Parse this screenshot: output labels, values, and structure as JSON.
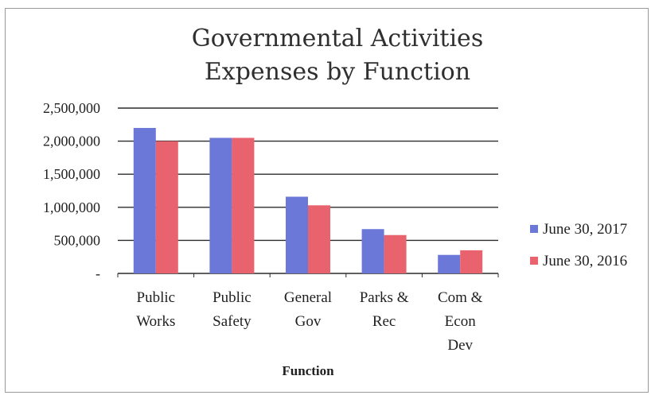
{
  "chart_data": {
    "type": "bar",
    "title_lines": [
      "Governmental Activities",
      "Expenses by Function"
    ],
    "xlabel": "Function",
    "ylabel": "",
    "ylim": [
      0,
      2500000
    ],
    "yticks": [
      0,
      500000,
      1000000,
      1500000,
      2000000,
      2500000
    ],
    "ytick_labels": [
      "-",
      "500,000",
      "1,000,000",
      "1,500,000",
      "2,000,000",
      "2,500,000"
    ],
    "categories": [
      "Public Works",
      "Public Safety",
      "General Gov",
      "Parks & Rec",
      "Com & Econ Dev"
    ],
    "category_lines": [
      [
        "Public",
        "Works"
      ],
      [
        "Public",
        "Safety"
      ],
      [
        "General",
        "Gov"
      ],
      [
        "Parks &",
        "Rec"
      ],
      [
        "Com &",
        "Econ",
        "Dev"
      ]
    ],
    "series": [
      {
        "name": "June 30, 2017",
        "color": "#6b78d8",
        "values": [
          2200000,
          2050000,
          1160000,
          670000,
          280000
        ]
      },
      {
        "name": "June 30, 2016",
        "color": "#e8636e",
        "values": [
          2000000,
          2050000,
          1030000,
          580000,
          350000
        ]
      }
    ],
    "grid": true,
    "legend_position": "right"
  }
}
